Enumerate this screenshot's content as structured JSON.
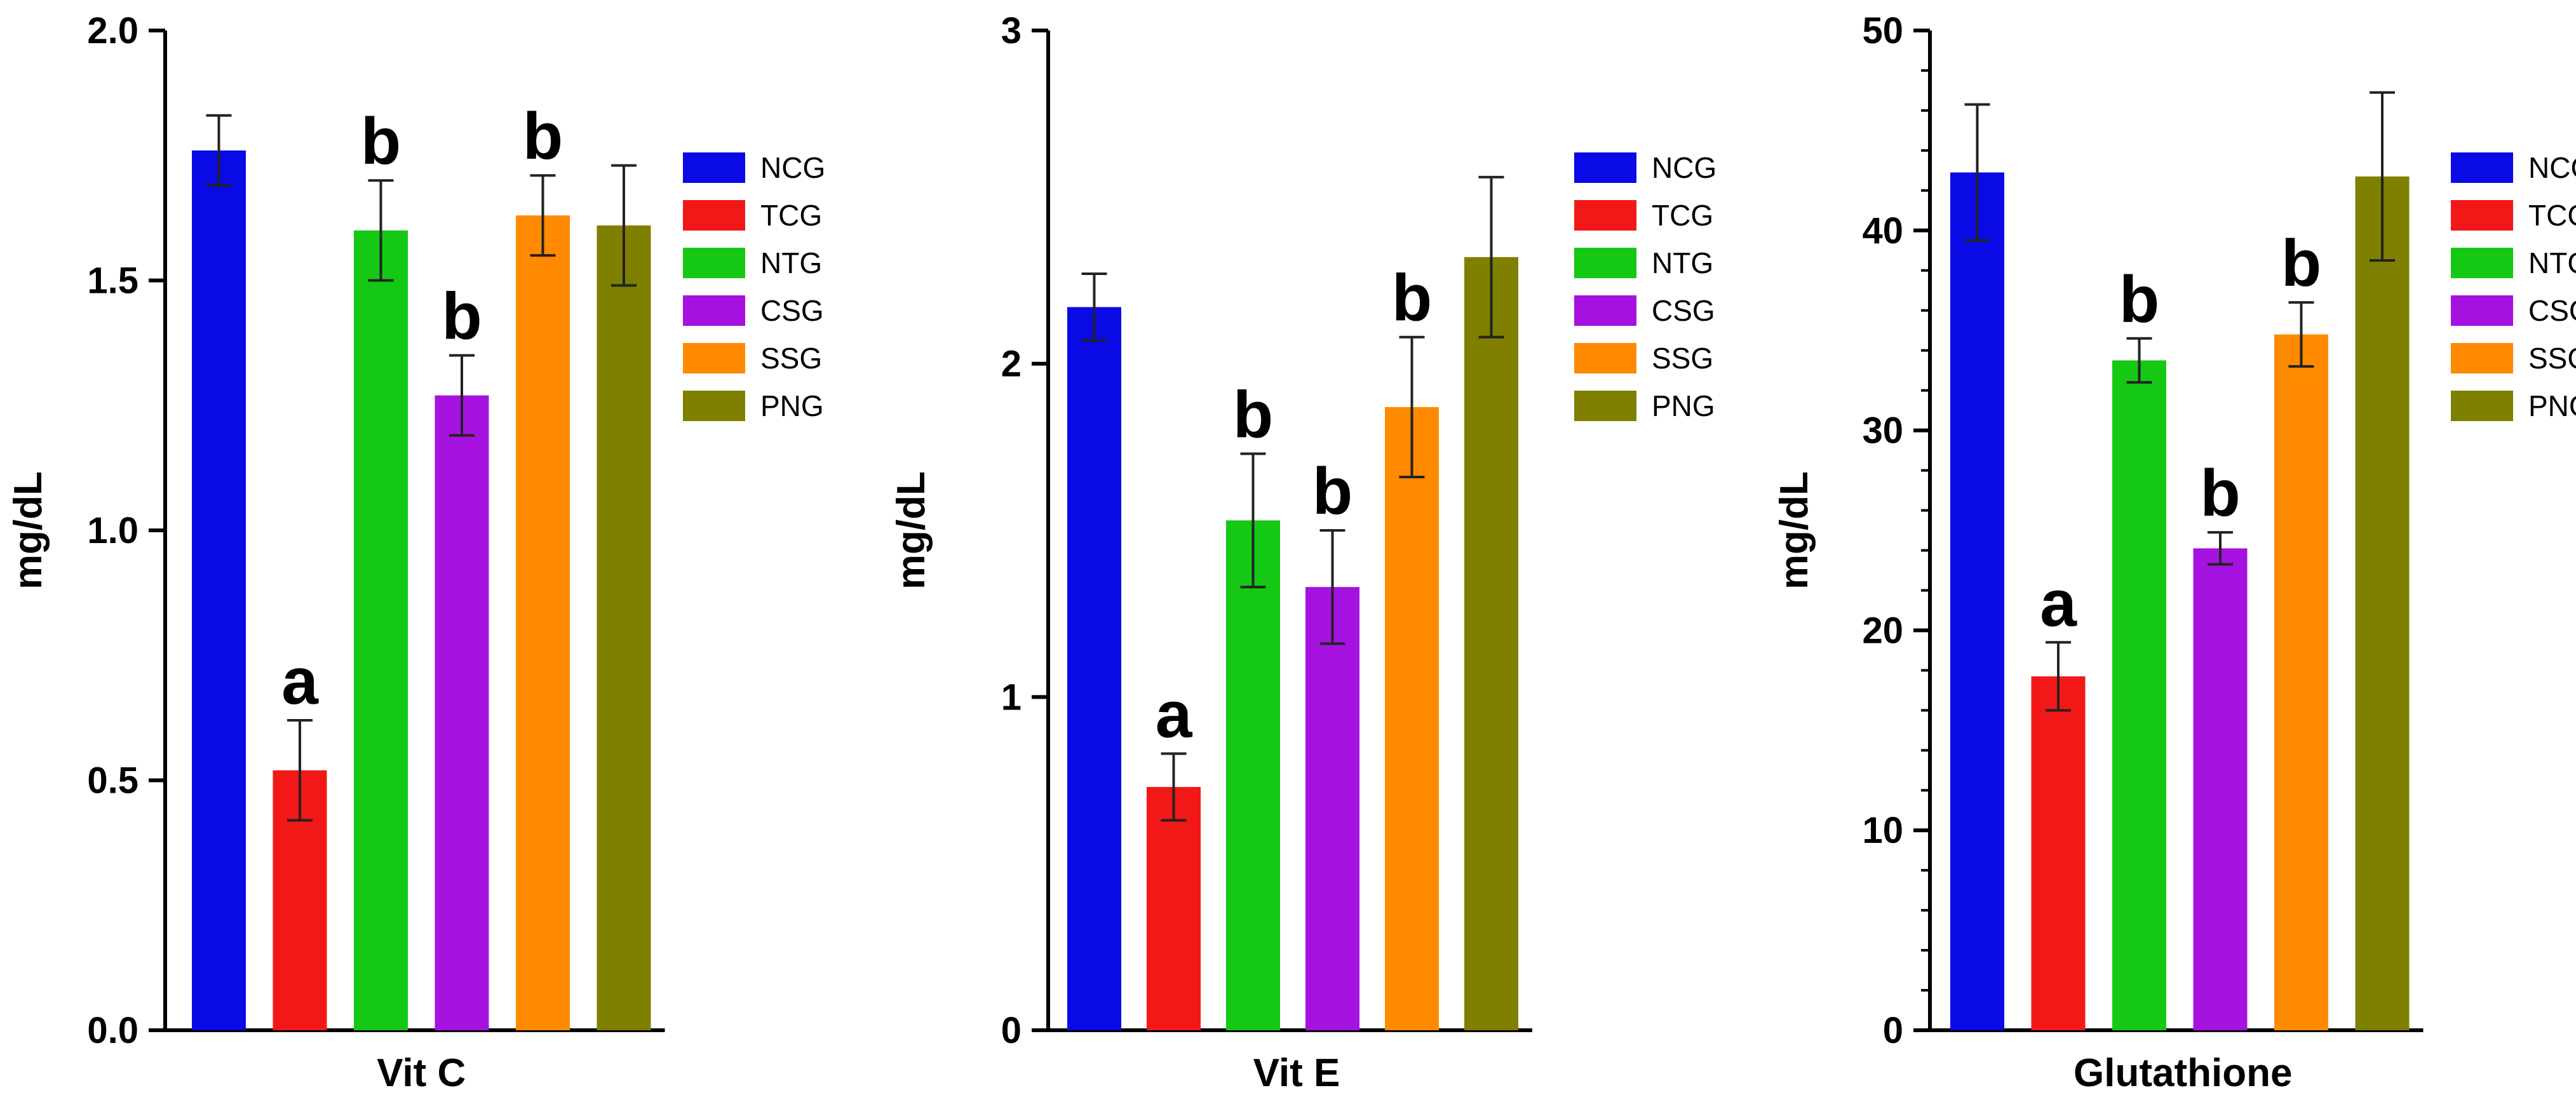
{
  "chart_data": [
    {
      "type": "bar",
      "title": "",
      "xlabel": "Vit C",
      "ylabel": "mg/dL",
      "ylim": [
        0,
        2.0
      ],
      "yticks": [
        0.0,
        0.5,
        1.0,
        1.5,
        2.0
      ],
      "ytick_labels": [
        "0.0",
        "0.5",
        "1.0",
        "1.5",
        "2.0"
      ],
      "minor_ticks_per_major": 0,
      "categories": [
        "NCG",
        "TCG",
        "NTG",
        "CSG",
        "SSG",
        "PNG"
      ],
      "values": [
        1.76,
        0.52,
        1.6,
        1.27,
        1.63,
        1.61
      ],
      "errors": [
        0.07,
        0.1,
        0.1,
        0.08,
        0.08,
        0.12
      ],
      "significance": [
        "",
        "a",
        "b",
        "b",
        "b",
        ""
      ],
      "legend": [
        "NCG",
        "TCG",
        "NTG",
        "CSG",
        "SSG",
        "PNG"
      ],
      "legend_position": "right"
    },
    {
      "type": "bar",
      "title": "",
      "xlabel": "Vit E",
      "ylabel": "mg/dL",
      "ylim": [
        0,
        3
      ],
      "yticks": [
        0,
        1,
        2,
        3
      ],
      "ytick_labels": [
        "0",
        "1",
        "2",
        "3"
      ],
      "minor_ticks_per_major": 0,
      "categories": [
        "NCG",
        "TCG",
        "NTG",
        "CSG",
        "SSG",
        "PNG"
      ],
      "values": [
        2.17,
        0.73,
        1.53,
        1.33,
        1.87,
        2.32
      ],
      "errors": [
        0.1,
        0.1,
        0.2,
        0.17,
        0.21,
        0.24
      ],
      "significance": [
        "",
        "a",
        "b",
        "b",
        "b",
        ""
      ],
      "legend": [
        "NCG",
        "TCG",
        "NTG",
        "CSG",
        "SSG",
        "PNG"
      ],
      "legend_position": "right"
    },
    {
      "type": "bar",
      "title": "",
      "xlabel": "Glutathione",
      "ylabel": "mg/dL",
      "ylim": [
        0,
        50
      ],
      "yticks": [
        0,
        10,
        20,
        30,
        40,
        50
      ],
      "ytick_labels": [
        "0",
        "10",
        "20",
        "30",
        "40",
        "50"
      ],
      "minor_ticks_per_major": 5,
      "categories": [
        "NCG",
        "TCG",
        "NTG",
        "CSG",
        "SSG",
        "PNG"
      ],
      "values": [
        42.9,
        17.7,
        33.5,
        24.1,
        34.8,
        42.7
      ],
      "errors": [
        3.4,
        1.7,
        1.1,
        0.8,
        1.6,
        4.2
      ],
      "significance": [
        "",
        "a",
        "b",
        "b",
        "b",
        ""
      ],
      "legend": [
        "NCG",
        "TCG",
        "NTG",
        "CSG",
        "SSG",
        "PNG"
      ],
      "legend_position": "right"
    }
  ],
  "colors": {
    "NCG": "#0a0ae6",
    "TCG": "#f21818",
    "NTG": "#14c814",
    "CSG": "#a512e0",
    "SSG": "#ff8a00",
    "PNG": "#7f7f00"
  }
}
